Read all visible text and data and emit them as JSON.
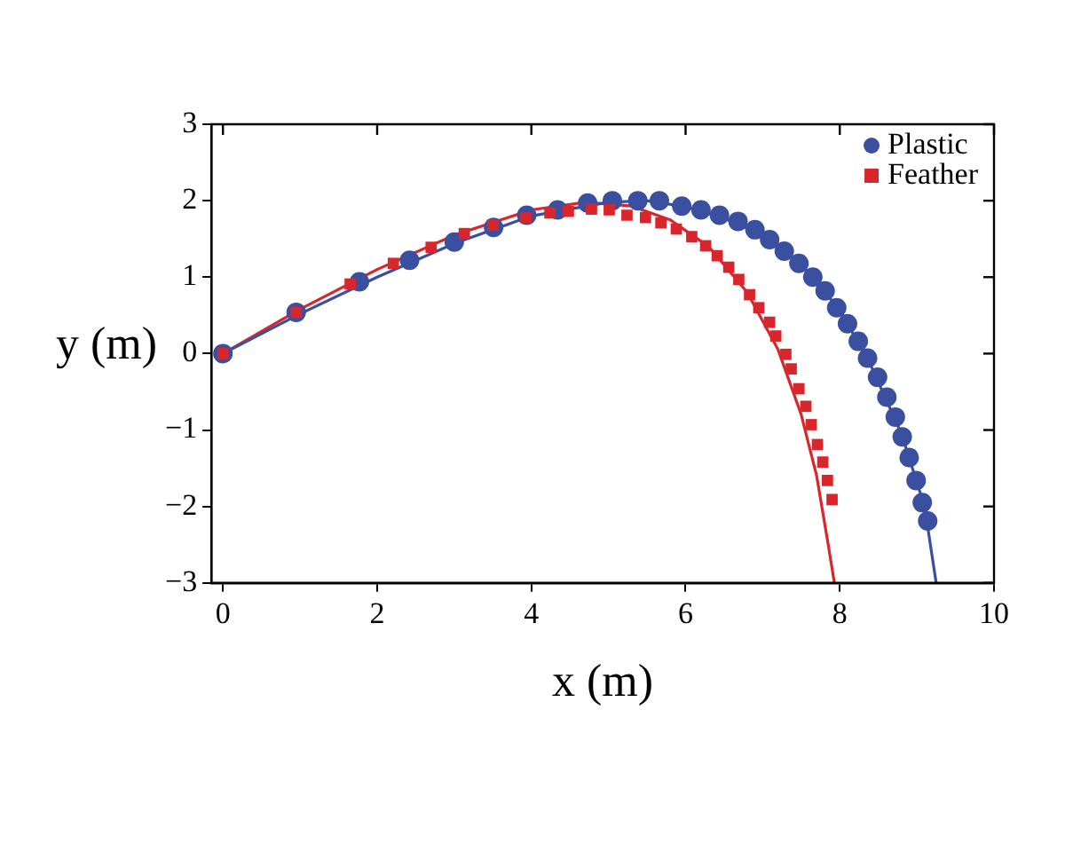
{
  "chart_data": {
    "type": "scatter",
    "xlabel": "x (m)",
    "ylabel": "y (m)",
    "xlim": [
      -0.15,
      10
    ],
    "ylim": [
      -3,
      3
    ],
    "xticks": [
      0,
      2,
      4,
      6,
      8,
      10
    ],
    "yticks": [
      -3,
      -2,
      -1,
      0,
      1,
      2,
      3
    ],
    "grid": false,
    "legend": "top right",
    "series": [
      {
        "name": "Plastic",
        "marker": "circle",
        "color": "#3a4fa0",
        "x": [
          0,
          0.95,
          1.77,
          2.42,
          3.0,
          3.51,
          3.94,
          4.34,
          4.73,
          5.05,
          5.38,
          5.66,
          5.95,
          6.2,
          6.44,
          6.68,
          6.9,
          7.09,
          7.28,
          7.47,
          7.65,
          7.81,
          7.96,
          8.1,
          8.24,
          8.36,
          8.49,
          8.61,
          8.72,
          8.81,
          8.9,
          8.99,
          9.07,
          9.14
        ],
        "values": [
          0,
          0.54,
          0.94,
          1.22,
          1.46,
          1.65,
          1.81,
          1.88,
          1.97,
          2.0,
          2.0,
          2.0,
          1.93,
          1.88,
          1.81,
          1.73,
          1.62,
          1.49,
          1.34,
          1.18,
          1.0,
          0.82,
          0.6,
          0.39,
          0.16,
          -0.06,
          -0.31,
          -0.57,
          -0.83,
          -1.09,
          -1.36,
          -1.66,
          -1.95,
          -2.19
        ]
      },
      {
        "name": "Feather",
        "marker": "square",
        "color": "#d9262c",
        "x": [
          0,
          0.95,
          1.65,
          2.21,
          2.7,
          3.13,
          3.5,
          3.93,
          4.24,
          4.48,
          4.78,
          5.01,
          5.24,
          5.48,
          5.68,
          5.88,
          6.08,
          6.26,
          6.41,
          6.56,
          6.69,
          6.83,
          6.95,
          7.09,
          7.17,
          7.3,
          7.37,
          7.47,
          7.56,
          7.63,
          7.71,
          7.78,
          7.84,
          7.9
        ],
        "values": [
          0,
          0.54,
          0.91,
          1.18,
          1.39,
          1.57,
          1.68,
          1.78,
          1.84,
          1.86,
          1.89,
          1.88,
          1.81,
          1.78,
          1.71,
          1.63,
          1.53,
          1.41,
          1.28,
          1.13,
          0.97,
          0.77,
          0.6,
          0.41,
          0.23,
          -0.01,
          -0.2,
          -0.46,
          -0.69,
          -0.93,
          -1.19,
          -1.42,
          -1.66,
          -1.91
        ]
      },
      {
        "type": "line",
        "marker": "none",
        "line_style": "solid",
        "color": "#3a4fa0",
        "x": [
          0,
          1,
          2,
          3,
          4,
          5,
          5.5,
          6,
          6.5,
          7,
          7.5,
          8,
          8.4,
          8.8,
          9.1,
          9.25
        ],
        "values": [
          0,
          0.52,
          1.0,
          1.44,
          1.8,
          1.98,
          2.0,
          1.92,
          1.77,
          1.55,
          1.17,
          0.57,
          -0.15,
          -1.05,
          -2.0,
          -3
        ]
      },
      {
        "type": "line",
        "marker": "none",
        "line_style": "solid",
        "color": "#d9262c",
        "x": [
          0,
          1,
          2,
          3,
          4,
          4.7,
          5.3,
          5.8,
          6.3,
          6.8,
          7.2,
          7.5,
          7.7,
          7.85,
          7.93
        ],
        "values": [
          0,
          0.58,
          1.1,
          1.55,
          1.88,
          1.98,
          1.93,
          1.75,
          1.4,
          0.8,
          0.05,
          -0.8,
          -1.6,
          -2.5,
          -3
        ]
      }
    ]
  }
}
